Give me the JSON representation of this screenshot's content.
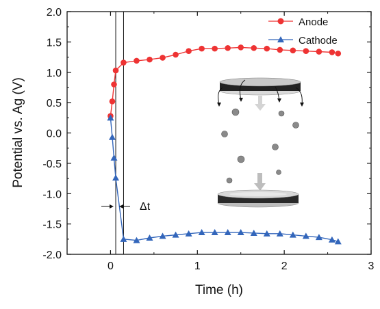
{
  "chart_data": {
    "type": "line",
    "xlabel": "Time (h)",
    "ylabel": "Potential vs. Ag (V)",
    "xlim": [
      -0.5,
      3
    ],
    "ylim": [
      -2.0,
      2.0
    ],
    "xticks": [
      "0",
      "1",
      "2",
      "3"
    ],
    "xtick_values": [
      0,
      1,
      2,
      3
    ],
    "yticks": [
      "-2.0",
      "-1.5",
      "-1.0",
      "-0.5",
      "0.0",
      "0.5",
      "1.0",
      "1.5",
      "2.0"
    ],
    "ytick_values": [
      -2.0,
      -1.5,
      -1.0,
      -0.5,
      0.0,
      0.5,
      1.0,
      1.5,
      2.0
    ],
    "legend_position": "top-right",
    "grid": false,
    "series": [
      {
        "name": "Anode",
        "color": "#ee3333",
        "marker": "circle",
        "x": [
          0.0,
          0.02,
          0.04,
          0.06,
          0.15,
          0.3,
          0.45,
          0.6,
          0.75,
          0.9,
          1.05,
          1.2,
          1.35,
          1.5,
          1.65,
          1.8,
          1.95,
          2.1,
          2.25,
          2.4,
          2.55,
          2.62
        ],
        "y": [
          0.28,
          0.52,
          0.8,
          1.03,
          1.16,
          1.19,
          1.21,
          1.24,
          1.29,
          1.35,
          1.39,
          1.39,
          1.4,
          1.41,
          1.4,
          1.39,
          1.37,
          1.36,
          1.35,
          1.34,
          1.33,
          1.31
        ]
      },
      {
        "name": "Cathode",
        "color": "#3366bb",
        "marker": "triangle",
        "x": [
          0.0,
          0.02,
          0.04,
          0.06,
          0.15,
          0.3,
          0.45,
          0.6,
          0.75,
          0.9,
          1.05,
          1.2,
          1.35,
          1.5,
          1.65,
          1.8,
          1.95,
          2.1,
          2.25,
          2.4,
          2.55,
          2.62
        ],
        "y": [
          0.25,
          -0.07,
          -0.41,
          -0.74,
          -1.75,
          -1.77,
          -1.73,
          -1.7,
          -1.68,
          -1.66,
          -1.64,
          -1.64,
          -1.64,
          -1.64,
          -1.65,
          -1.66,
          -1.66,
          -1.68,
          -1.7,
          -1.72,
          -1.76,
          -1.79
        ]
      }
    ],
    "vlines": [
      0.06,
      0.15
    ],
    "annotation": "Δt"
  }
}
